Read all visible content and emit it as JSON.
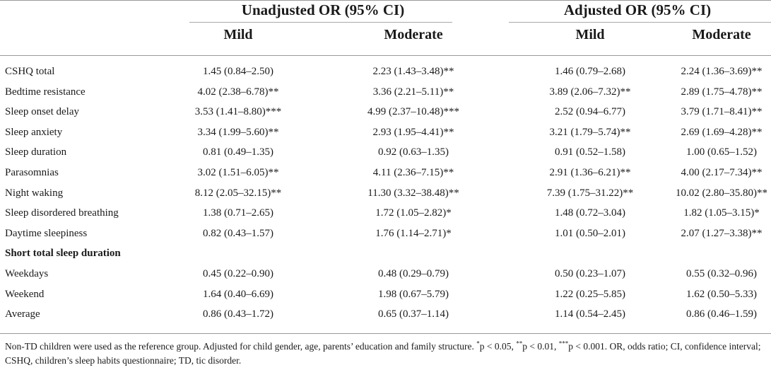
{
  "header": {
    "group1": "Unadjusted OR (95% CI)",
    "group2": "Adjusted OR (95% CI)",
    "sub": [
      "Mild",
      "Moderate",
      "Mild",
      "Moderate"
    ]
  },
  "rows": [
    {
      "label": "CSHQ total",
      "v": [
        "1.45 (0.84–2.50)",
        "2.23 (1.43–3.48)**",
        "1.46 (0.79–2.68)",
        "2.24 (1.36–3.69)**"
      ]
    },
    {
      "label": "Bedtime resistance",
      "v": [
        "4.02 (2.38–6.78)**",
        "3.36 (2.21–5.11)**",
        "3.89 (2.06–7.32)**",
        "2.89 (1.75–4.78)**"
      ]
    },
    {
      "label": "Sleep onset delay",
      "v": [
        "3.53 (1.41–8.80)***",
        "4.99 (2.37–10.48)***",
        "2.52 (0.94–6.77)",
        "3.79 (1.71–8.41)**"
      ]
    },
    {
      "label": "Sleep anxiety",
      "v": [
        "3.34 (1.99–5.60)**",
        "2.93 (1.95–4.41)**",
        "3.21 (1.79–5.74)**",
        "2.69 (1.69–4.28)**"
      ]
    },
    {
      "label": "Sleep duration",
      "v": [
        "0.81 (0.49–1.35)",
        "0.92 (0.63–1.35)",
        "0.91 (0.52–1.58)",
        "1.00 (0.65–1.52)"
      ]
    },
    {
      "label": "Parasomnias",
      "v": [
        "3.02 (1.51–6.05)**",
        "4.11 (2.36–7.15)**",
        "2.91 (1.36–6.21)**",
        "4.00 (2.17–7.34)**"
      ]
    },
    {
      "label": "Night waking",
      "v": [
        "8.12 (2.05–32.15)**",
        "11.30 (3.32–38.48)**",
        "7.39 (1.75–31.22)**",
        "10.02 (2.80–35.80)**"
      ]
    },
    {
      "label": "Sleep disordered breathing",
      "v": [
        "1.38 (0.71–2.65)",
        "1.72 (1.05–2.82)*",
        "1.48 (0.72–3.04)",
        "1.82 (1.05–3.15)*"
      ]
    },
    {
      "label": "Daytime sleepiness",
      "v": [
        "0.82 (0.43–1.57)",
        "1.76 (1.14–2.71)*",
        "1.01 (0.50–2.01)",
        "2.07 (1.27–3.38)**"
      ]
    },
    {
      "label": "Short total sleep duration",
      "section": true,
      "v": [
        "",
        "",
        "",
        ""
      ]
    },
    {
      "label": "Weekdays",
      "v": [
        "0.45 (0.22–0.90)",
        "0.48 (0.29–0.79)",
        "0.50 (0.23–1.07)",
        "0.55 (0.32–0.96)"
      ]
    },
    {
      "label": "Weekend",
      "v": [
        "1.64 (0.40–6.69)",
        "1.98 (0.67–5.79)",
        "1.22 (0.25–5.85)",
        "1.62 (0.50–5.33)"
      ]
    },
    {
      "label": "Average",
      "v": [
        "0.86 (0.43–1.72)",
        "0.65 (0.37–1.14)",
        "1.14 (0.54–2.45)",
        "0.86 (0.46–1.59)"
      ]
    }
  ],
  "footnote": {
    "part1": "Non-TD children were used as the reference group. Adjusted for child gender, age, parents’ education and family structure. ",
    "s1": "*",
    "t1": "p < 0.05, ",
    "s2": "**",
    "t2": "p < 0.01, ",
    "s3": "***",
    "t3": "p < 0.001. OR, odds ratio; CI, confidence interval; CSHQ, children’s sleep habits questionnaire; TD, tic disorder."
  }
}
